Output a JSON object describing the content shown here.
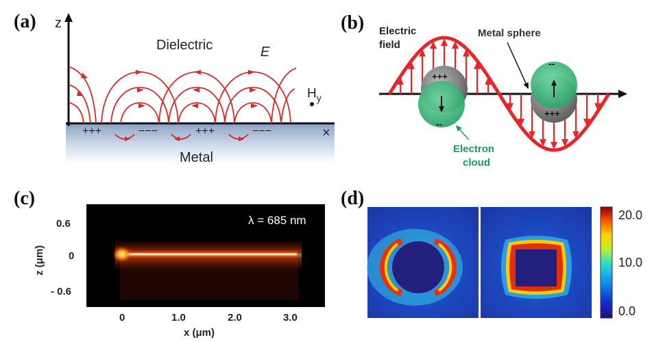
{
  "panel_a": {
    "label": "(a)",
    "z_axis": "z",
    "x_axis": "x",
    "dielectric": "Dielectric",
    "metal": "Metal",
    "field": "E",
    "hy_main": "H",
    "hy_sub": "y",
    "charges": [
      "+++",
      "−−−",
      "+++",
      "−−−"
    ]
  },
  "panel_b": {
    "label": "(b)",
    "electric_field_line1": "Electric",
    "electric_field_line2": "field",
    "metal_sphere": "Metal sphere",
    "electron_cloud_line1": "Electron",
    "electron_cloud_line2": "cloud",
    "plus": "+++",
    "minus": "--",
    "colors": {
      "wave": "#e8262a",
      "cloud": "#39b87a",
      "sphere": "#8a8a8a"
    }
  },
  "panel_c": {
    "label": "(c)",
    "wavelength": "λ = 685 nm",
    "ylabel": "z (μm)",
    "xlabel": "x (μm)",
    "yticks": [
      "0.6",
      "0",
      "- 0.6"
    ],
    "xticks": [
      "0",
      "1.0",
      "2.0",
      "3.0"
    ]
  },
  "panel_d": {
    "label": "(d)",
    "colorbar_ticks": [
      "20.0",
      "10.0",
      "0.0"
    ]
  }
}
